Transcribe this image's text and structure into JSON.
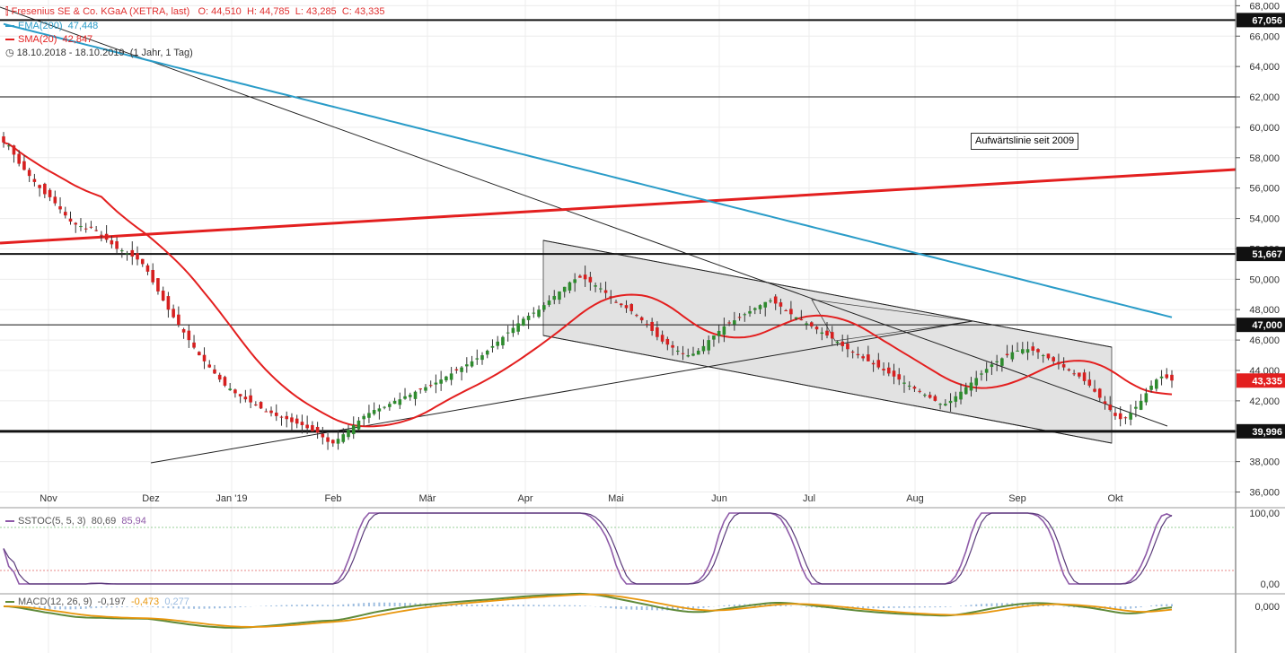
{
  "chart_data": {
    "type": "candlestick",
    "title": "Fresenius SE & Co. KGaA (XETRA, last)",
    "ohlc": {
      "o_label": "O:",
      "o": "44,510",
      "h_label": "H:",
      "h": "44,785",
      "l_label": "L:",
      "l": "43,285",
      "c_label": "C:",
      "c": "43,335"
    },
    "ema_label": "EMA(200)",
    "ema_value": "47,448",
    "sma_label": "SMA(20)",
    "sma_value": "42,847",
    "period": "18.10.2018 - 18.10.2019",
    "period_note": "(1 Jahr, 1 Tag)",
    "y_ticks": [
      "68,000",
      "66,000",
      "64,000",
      "62,000",
      "60,000",
      "58,000",
      "56,000",
      "54,000",
      "52,000",
      "50,000",
      "48,000",
      "46,000",
      "44,000",
      "42,000",
      "40,000",
      "38,000",
      "36,000"
    ],
    "ylim": [
      35.5,
      68.2
    ],
    "x_ticks": [
      "Nov",
      "Dez",
      "Jan '19",
      "Feb",
      "Mär",
      "Apr",
      "Mai",
      "Jun",
      "Jul",
      "Aug",
      "Sep",
      "Okt"
    ],
    "price_tags": [
      "67,056",
      "51,667",
      "47,000",
      "43,335",
      "39,996"
    ],
    "horizontal_levels": [
      67.056,
      62.0,
      51.667,
      47.0,
      39.996
    ],
    "annotation": "Aufwärtslinie seit 2009",
    "close_series": [
      59.0,
      58.8,
      58.2,
      57.6,
      57.2,
      56.8,
      56.4,
      56.0,
      55.6,
      55.4,
      55.0,
      54.6,
      54.2,
      53.8,
      53.6,
      53.5,
      53.3,
      53.4,
      53.2,
      52.9,
      52.6,
      52.3,
      52.0,
      51.9,
      51.7,
      51.5,
      51.3,
      51.0,
      50.5,
      49.8,
      49.2,
      48.6,
      48.0,
      47.5,
      47.0,
      46.5,
      46.0,
      45.5,
      45.0,
      44.6,
      44.2,
      43.8,
      43.4,
      43.0,
      42.8,
      42.5,
      42.3,
      42.1,
      41.9,
      41.7,
      41.5,
      41.3,
      41.2,
      41.0,
      40.9,
      40.8,
      40.6,
      40.5,
      40.4,
      40.2,
      40.0,
      39.9,
      39.6,
      39.3,
      39.2,
      39.5,
      39.8,
      40.1,
      40.4,
      40.7,
      41.0,
      41.2,
      41.4,
      41.5,
      41.6,
      41.8,
      42.0,
      42.1,
      42.3,
      42.4,
      42.6,
      42.8,
      42.9,
      43.0,
      43.2,
      43.4,
      43.6,
      43.8,
      44.0,
      44.2,
      44.4,
      44.6,
      44.8,
      45.0,
      45.3,
      45.6,
      45.9,
      46.2,
      46.5,
      46.8,
      47.1,
      47.4,
      47.6,
      47.8,
      48.0,
      48.3,
      48.6,
      48.9,
      49.2,
      49.5,
      49.8,
      50.0,
      50.1,
      50.0,
      49.8,
      49.6,
      49.4,
      49.1,
      48.8,
      48.5,
      48.3,
      48.1,
      47.9,
      47.6,
      47.3,
      47.0,
      46.6,
      46.2,
      45.9,
      45.7,
      45.5,
      45.3,
      45.1,
      45.0,
      45.1,
      45.3,
      45.6,
      46.0,
      46.3,
      46.6,
      46.9,
      47.1,
      47.3,
      47.5,
      47.7,
      47.9,
      48.1,
      48.3,
      48.5,
      48.6,
      48.4,
      48.2,
      47.9,
      47.7,
      47.5,
      47.3,
      47.1,
      46.9,
      46.7,
      46.5,
      46.3,
      46.1,
      45.9,
      45.6,
      45.4,
      45.2,
      45.0,
      44.8,
      44.6,
      44.4,
      44.2,
      44.0,
      43.8,
      43.6,
      43.4,
      43.2,
      43.0,
      42.8,
      42.6,
      42.4,
      42.2,
      42.0,
      41.8,
      41.8,
      42.0,
      42.3,
      42.6,
      42.9,
      43.2,
      43.5,
      43.8,
      44.1,
      44.4,
      44.6,
      44.8,
      45.0,
      45.2,
      45.3,
      45.4,
      45.4,
      45.3,
      45.2,
      45.0,
      44.8,
      44.6,
      44.4,
      44.2,
      44.0,
      43.8,
      43.6,
      43.3,
      43.0,
      42.6,
      42.2,
      41.8,
      41.4,
      41.0,
      40.8,
      40.9,
      41.2,
      41.6,
      42.0,
      42.5,
      43.0,
      43.4,
      43.6,
      43.5,
      43.335
    ],
    "sstoc_label": "SSTOC(5, 5, 3)",
    "sstoc_k": "80,69",
    "sstoc_d": "85,94",
    "sstoc_ticks": [
      "100,00",
      "0,00"
    ],
    "macd_label": "MACD(12, 26, 9)",
    "macd": "-0,197",
    "signal": "-0,473",
    "hist": "0,277",
    "macd_ticks": [
      "0,000"
    ]
  },
  "colors": {
    "candle_up": "#2e8b2e",
    "candle_down": "#d62020",
    "ema": "#2a9cc8",
    "sma": "#e31f1f",
    "trendline_red": "#e31f1f",
    "sstoc_k": "#8e5aa8",
    "sstoc_d": "#5a3a7a",
    "macd": "#5f8a3a",
    "signal": "#e8960c",
    "hist": "#9dbde0",
    "title_text": "#e03030"
  }
}
